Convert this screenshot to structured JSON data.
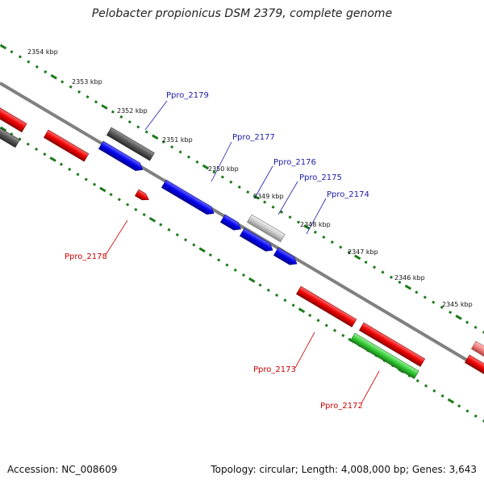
{
  "title": "Pelobacter propionicus DSM 2379, complete genome",
  "footer": {
    "accession": "Accession: NC_008609",
    "summary": "Topology: circular; Length: 4,008,000 bp; Genes: 3,643"
  },
  "colors": {
    "backbone": "#808080",
    "tick": "#1a7a1a",
    "forward": "#0000ee",
    "reverse": "#ee0000",
    "green": "#33cc33",
    "dark": "#555555",
    "light": "#c8c8c8",
    "label_forward": "#1a1aa6",
    "label_reverse": "#cc0000"
  },
  "ruler": {
    "kbp_labels": [
      "2354 kbp",
      "2353 kbp",
      "2352 kbp",
      "2351 kbp",
      "2350 kbp",
      "2349 kbp",
      "2348 kbp",
      "2347 kbp",
      "2346 kbp",
      "2345 kbp"
    ]
  },
  "gene_labels": {
    "Ppro_2179": "Ppro_2179",
    "Ppro_2177": "Ppro_2177",
    "Ppro_2176": "Ppro_2176",
    "Ppro_2175": "Ppro_2175",
    "Ppro_2174": "Ppro_2174",
    "Ppro_2178": "Ppro_2178",
    "Ppro_2173": "Ppro_2173",
    "Ppro_2172": "Ppro_2172"
  }
}
